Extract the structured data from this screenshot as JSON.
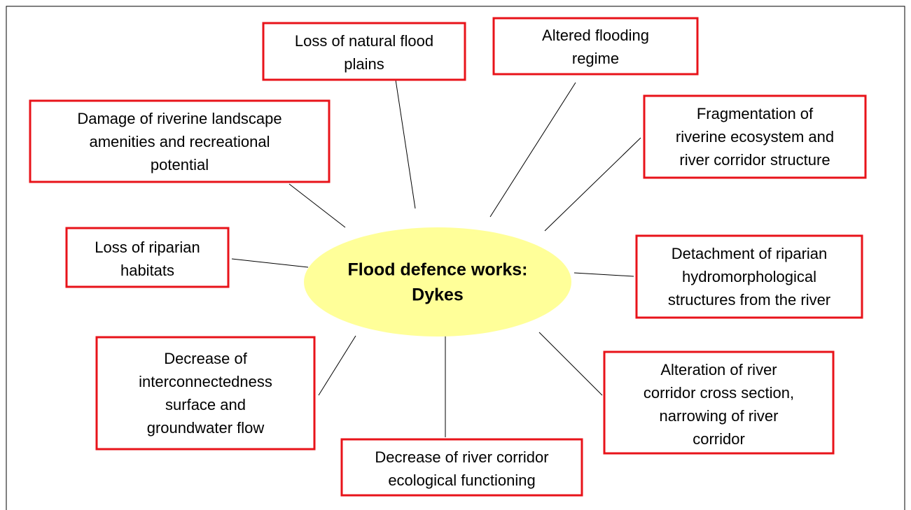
{
  "center": {
    "lines": [
      "Flood defence works:",
      "Dykes"
    ]
  },
  "nodes": [
    {
      "lines": [
        "Loss of natural flood",
        "plains"
      ]
    },
    {
      "lines": [
        "Altered flooding",
        "regime"
      ]
    },
    {
      "lines": [
        "Damage of riverine landscape",
        "amenities and recreational",
        "potential"
      ]
    },
    {
      "lines": [
        "Fragmentation of",
        "riverine ecosystem and",
        "river corridor structure"
      ]
    },
    {
      "lines": [
        "Loss of riparian",
        "habitats"
      ]
    },
    {
      "lines": [
        "Detachment of riparian",
        "hydromorphological",
        "structures from the river"
      ]
    },
    {
      "lines": [
        "Decrease of",
        "interconnectedness",
        "surface and",
        "groundwater flow"
      ]
    },
    {
      "lines": [
        "Decrease of river corridor",
        "ecological functioning"
      ]
    },
    {
      "lines": [
        "Alteration of river",
        "corridor cross section,",
        "narrowing of river",
        "corridor"
      ]
    }
  ]
}
